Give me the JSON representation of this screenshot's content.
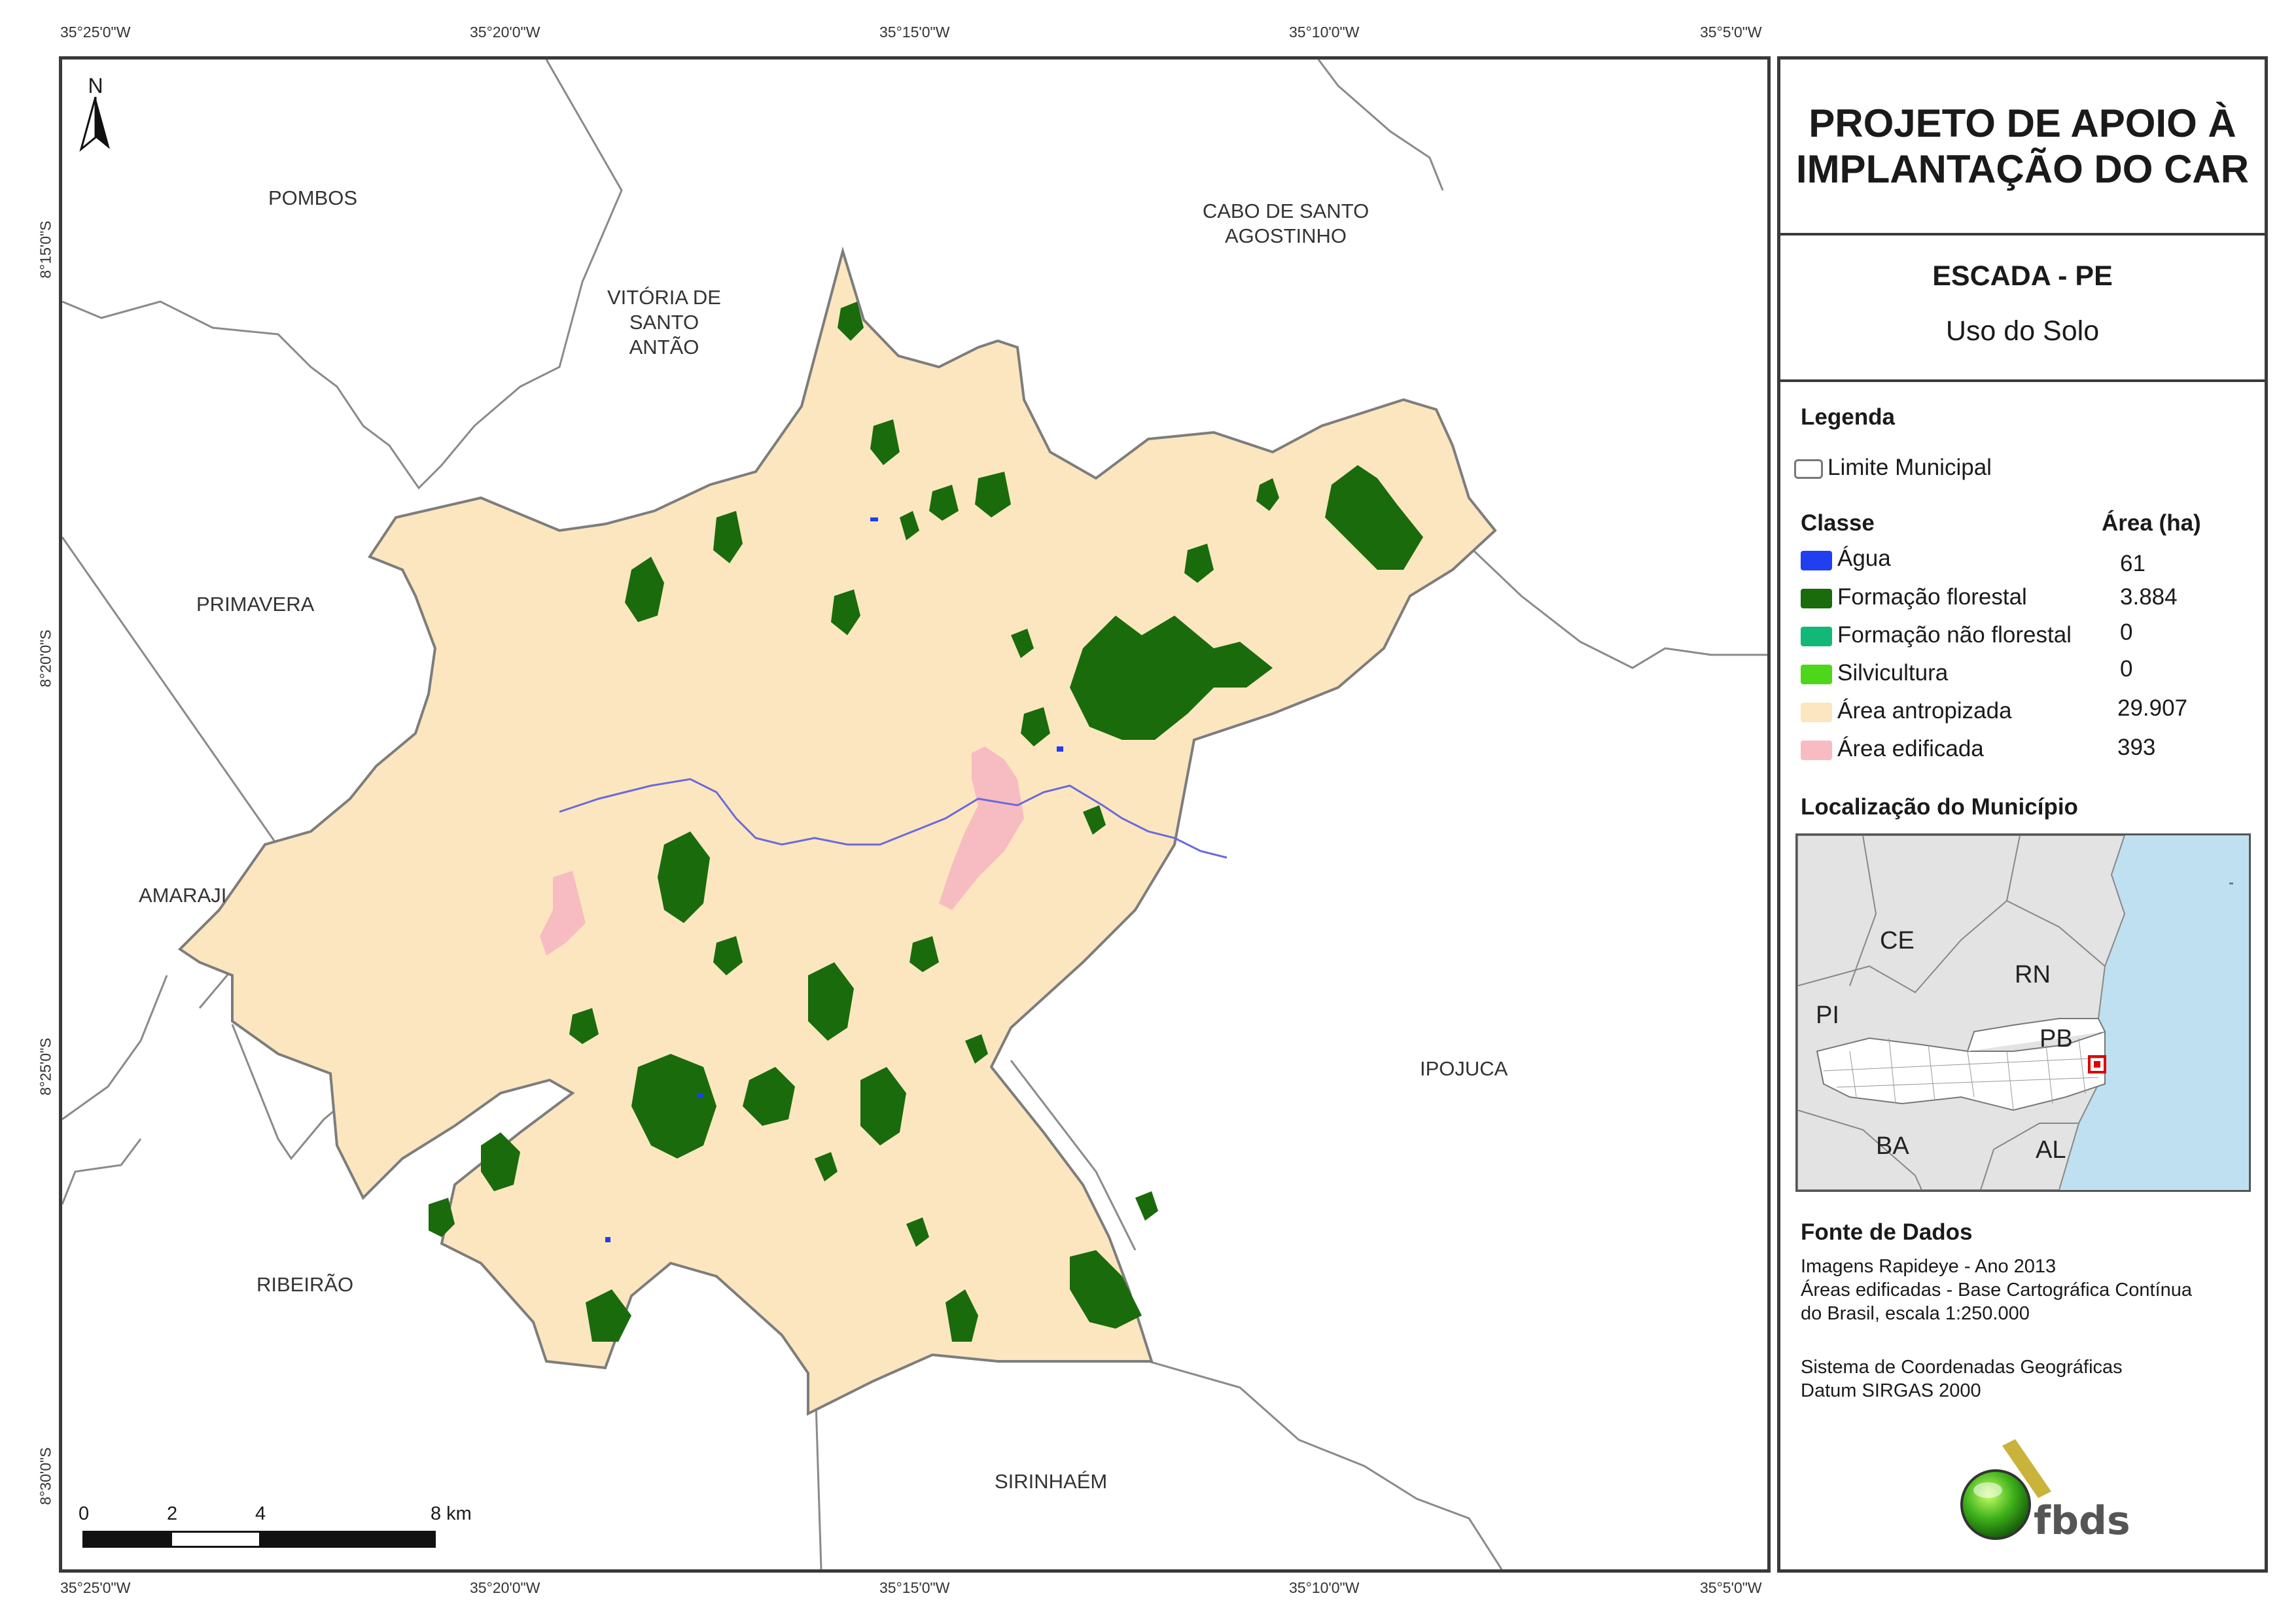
{
  "coordinates": {
    "top": [
      "35°25'0\"W",
      "35°20'0\"W",
      "35°15'0\"W",
      "35°10'0\"W",
      "35°5'0\"W"
    ],
    "bottom": [
      "35°25'0\"W",
      "35°20'0\"W",
      "35°15'0\"W",
      "35°10'0\"W",
      "35°5'0\"W"
    ],
    "left": [
      "8°15'0\"S",
      "8°20'0\"S",
      "8°25'0\"S",
      "8°30'0\"S"
    ]
  },
  "north_arrow": "N",
  "municipalities": {
    "pombos": "POMBOS",
    "vitoria": [
      "VITÓRIA DE",
      "SANTO",
      "ANTÃO"
    ],
    "cabo": [
      "CABO DE SANTO",
      "AGOSTINHO"
    ],
    "primavera": "PRIMAVERA",
    "amaraji": "AMARAJI",
    "ipojuca": "IPOJUCA",
    "ribeirao": "RIBEIRÃO",
    "sirinhaem": "SIRINHAÉM"
  },
  "scale_bar": {
    "labels": [
      "0",
      "2",
      "4",
      "8 km"
    ]
  },
  "panel": {
    "title": [
      "PROJETO DE APOIO À",
      "IMPLANTAÇÃO DO CAR"
    ],
    "place": "ESCADA - PE",
    "subtitle": "Uso do Solo",
    "legend_heading": "Legenda",
    "municipal_limit": "Limite Municipal",
    "class_heading": "Classe",
    "area_heading": "Área (ha)",
    "classes": [
      {
        "name": "Água",
        "area": "61",
        "color": "#1f3ff0"
      },
      {
        "name": "Formação florestal",
        "area": "3.884",
        "color": "#1a6b0c"
      },
      {
        "name": "Formação não florestal",
        "area": "0",
        "color": "#12b877"
      },
      {
        "name": "Silvicultura",
        "area": "0",
        "color": "#4ed61a"
      },
      {
        "name": "Área antropizada",
        "area": "29.907",
        "color": "#fce6bf"
      },
      {
        "name": "Área edificada",
        "area": "393",
        "color": "#f7bcc2"
      }
    ],
    "location_heading": "Localização do Município",
    "states": [
      "CE",
      "RN",
      "PI",
      "PB",
      "BA",
      "AL"
    ],
    "sources_heading": "Fonte de Dados",
    "sources": [
      "Imagens Rapideye - Ano 2013",
      "Áreas edificadas - Base Cartográfica Contínua",
      "do Brasil, escala 1:250.000"
    ],
    "coord_system": [
      "Sistema de Coordenadas Geográficas",
      "Datum SIRGAS 2000"
    ],
    "logo_text": "fbds"
  }
}
